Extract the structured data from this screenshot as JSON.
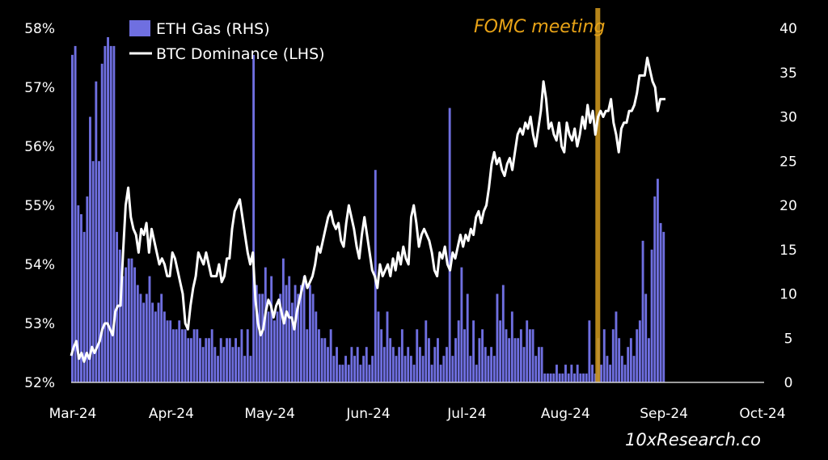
{
  "chart_data": {
    "type": "bar+line",
    "title": "",
    "series": [
      {
        "name": "ETH Gas (RHS)",
        "kind": "bar",
        "axis": "right",
        "color": "#6f6fe0",
        "values": [
          37,
          38,
          20,
          19,
          17,
          21,
          30,
          25,
          34,
          25,
          36,
          38,
          39,
          38,
          38,
          17,
          15,
          12,
          13,
          14,
          14,
          13,
          11,
          10,
          9,
          10,
          12,
          9,
          8,
          9,
          10,
          8,
          7,
          7,
          6,
          6,
          7,
          6,
          6,
          5,
          5,
          6,
          6,
          5,
          4,
          5,
          5,
          6,
          4,
          3,
          5,
          4,
          5,
          5,
          4,
          5,
          4,
          6,
          3,
          6,
          3,
          37,
          11,
          10,
          10,
          13,
          8,
          12,
          7,
          8,
          10,
          14,
          11,
          12,
          9,
          11,
          10,
          11,
          12,
          6,
          11,
          10,
          8,
          6,
          5,
          5,
          4,
          6,
          3,
          4,
          2,
          2,
          3,
          2,
          4,
          3,
          4,
          2,
          3,
          4,
          2,
          3,
          24,
          8,
          6,
          4,
          8,
          5,
          4,
          3,
          4,
          6,
          3,
          4,
          3,
          2,
          6,
          4,
          3,
          7,
          5,
          2,
          4,
          5,
          2,
          3,
          4,
          31,
          3,
          5,
          7,
          13,
          6,
          10,
          3,
          7,
          2,
          5,
          6,
          4,
          3,
          4,
          3,
          10,
          7,
          11,
          6,
          5,
          8,
          5,
          5,
          6,
          4,
          7,
          6,
          6,
          3,
          4,
          4,
          1,
          1,
          1,
          1,
          2,
          1,
          1,
          2,
          1,
          2,
          1,
          2,
          1,
          1,
          1,
          7,
          2,
          1,
          5,
          2,
          6,
          3,
          2,
          6,
          8,
          5,
          3,
          2,
          4,
          5,
          3,
          6,
          7,
          16,
          10,
          5,
          15,
          21,
          23,
          18,
          17
        ],
        "label_visible": "ETH Gas (RHS)"
      },
      {
        "name": "BTC Dominance (LHS)",
        "kind": "line",
        "axis": "left",
        "color": "#ffffff",
        "values": [
          52.45,
          52.6,
          52.7,
          52.4,
          52.5,
          52.35,
          52.5,
          52.4,
          52.6,
          52.5,
          52.6,
          52.7,
          52.9,
          53.0,
          53.0,
          52.9,
          52.8,
          53.2,
          53.3,
          53.3,
          54.2,
          55.0,
          55.3,
          54.8,
          54.6,
          54.5,
          54.2,
          54.6,
          54.5,
          54.7,
          54.2,
          54.6,
          54.4,
          54.2,
          54.0,
          54.1,
          54.0,
          53.8,
          53.8,
          54.2,
          54.1,
          53.9,
          53.7,
          53.5,
          53.0,
          52.9,
          53.3,
          53.6,
          53.8,
          54.2,
          54.1,
          54.0,
          54.2,
          54.0,
          53.8,
          53.8,
          53.8,
          54.0,
          53.7,
          53.8,
          54.1,
          54.1,
          54.6,
          54.9,
          55.0,
          55.1,
          54.8,
          54.5,
          54.2,
          54.0,
          54.2,
          53.4,
          53.0,
          52.8,
          52.9,
          53.2,
          53.4,
          53.3,
          53.1,
          53.3,
          53.4,
          53.2,
          53.0,
          53.2,
          53.1,
          53.1,
          52.9,
          53.2,
          53.4,
          53.6,
          53.8,
          53.6,
          53.7,
          53.8,
          54.0,
          54.3,
          54.2,
          54.4,
          54.6,
          54.8,
          54.9,
          54.7,
          54.6,
          54.7,
          54.4,
          54.3,
          54.7,
          55.0,
          54.8,
          54.6,
          54.3,
          54.1,
          54.5,
          54.8,
          54.5,
          54.2,
          53.9,
          53.8,
          53.6,
          54.0,
          53.8,
          53.9,
          54.0,
          53.8,
          54.1,
          53.9,
          54.2,
          54.0,
          54.3,
          54.1,
          54.0,
          54.8,
          55.0,
          54.7,
          54.3,
          54.5,
          54.6,
          54.5,
          54.4,
          54.2,
          53.9,
          53.8,
          54.2,
          54.1,
          54.3,
          54.0,
          53.9,
          54.2,
          54.1,
          54.3,
          54.5,
          54.3,
          54.5,
          54.4,
          54.6,
          54.5,
          54.8,
          54.9,
          54.7,
          54.9,
          55.0,
          55.3,
          55.7,
          55.9,
          55.7,
          55.8,
          55.6,
          55.5,
          55.7,
          55.8,
          55.6,
          55.9,
          56.2,
          56.3,
          56.2,
          56.4,
          56.3,
          56.5,
          56.2,
          56.0,
          56.3,
          56.6,
          57.1,
          56.8,
          56.3,
          56.4,
          56.2,
          56.1,
          56.4,
          56.0,
          55.9,
          56.4,
          56.2,
          56.1,
          56.3,
          56.0,
          56.2,
          56.5,
          56.3,
          56.7,
          56.4,
          56.6,
          56.2,
          56.5,
          56.6,
          56.5,
          56.6,
          56.6,
          56.8,
          56.4,
          56.2,
          55.9,
          56.3,
          56.4,
          56.4,
          56.6,
          56.6,
          56.7,
          56.9,
          57.2,
          57.2,
          57.2,
          57.5,
          57.3,
          57.1,
          57.0,
          56.6,
          56.8,
          56.8,
          56.8
        ]
      }
    ],
    "x_tick_labels": [
      "Mar-24",
      "Apr-24",
      "May-24",
      "Jun-24",
      "Jul-24",
      "Aug-24",
      "Sep-24",
      "Oct-24"
    ],
    "y_left": {
      "ticks": [
        "52%",
        "53%",
        "54%",
        "55%",
        "56%",
        "57%",
        "58%"
      ],
      "range": [
        52,
        58
      ]
    },
    "y_right": {
      "ticks": [
        "0",
        "5",
        "10",
        "15",
        "20",
        "25",
        "30",
        "35",
        "40"
      ],
      "range": [
        0,
        40
      ]
    },
    "annotation": {
      "text": "FOMC meeting",
      "color": "#c8921d",
      "at_fraction_of_x": 0.76
    },
    "source": "10xResearch.co"
  },
  "colors": {
    "background": "#000000",
    "bar": "#6f6fe0",
    "line": "#ffffff",
    "fomc": "#c8921d",
    "text": "#ffffff"
  }
}
